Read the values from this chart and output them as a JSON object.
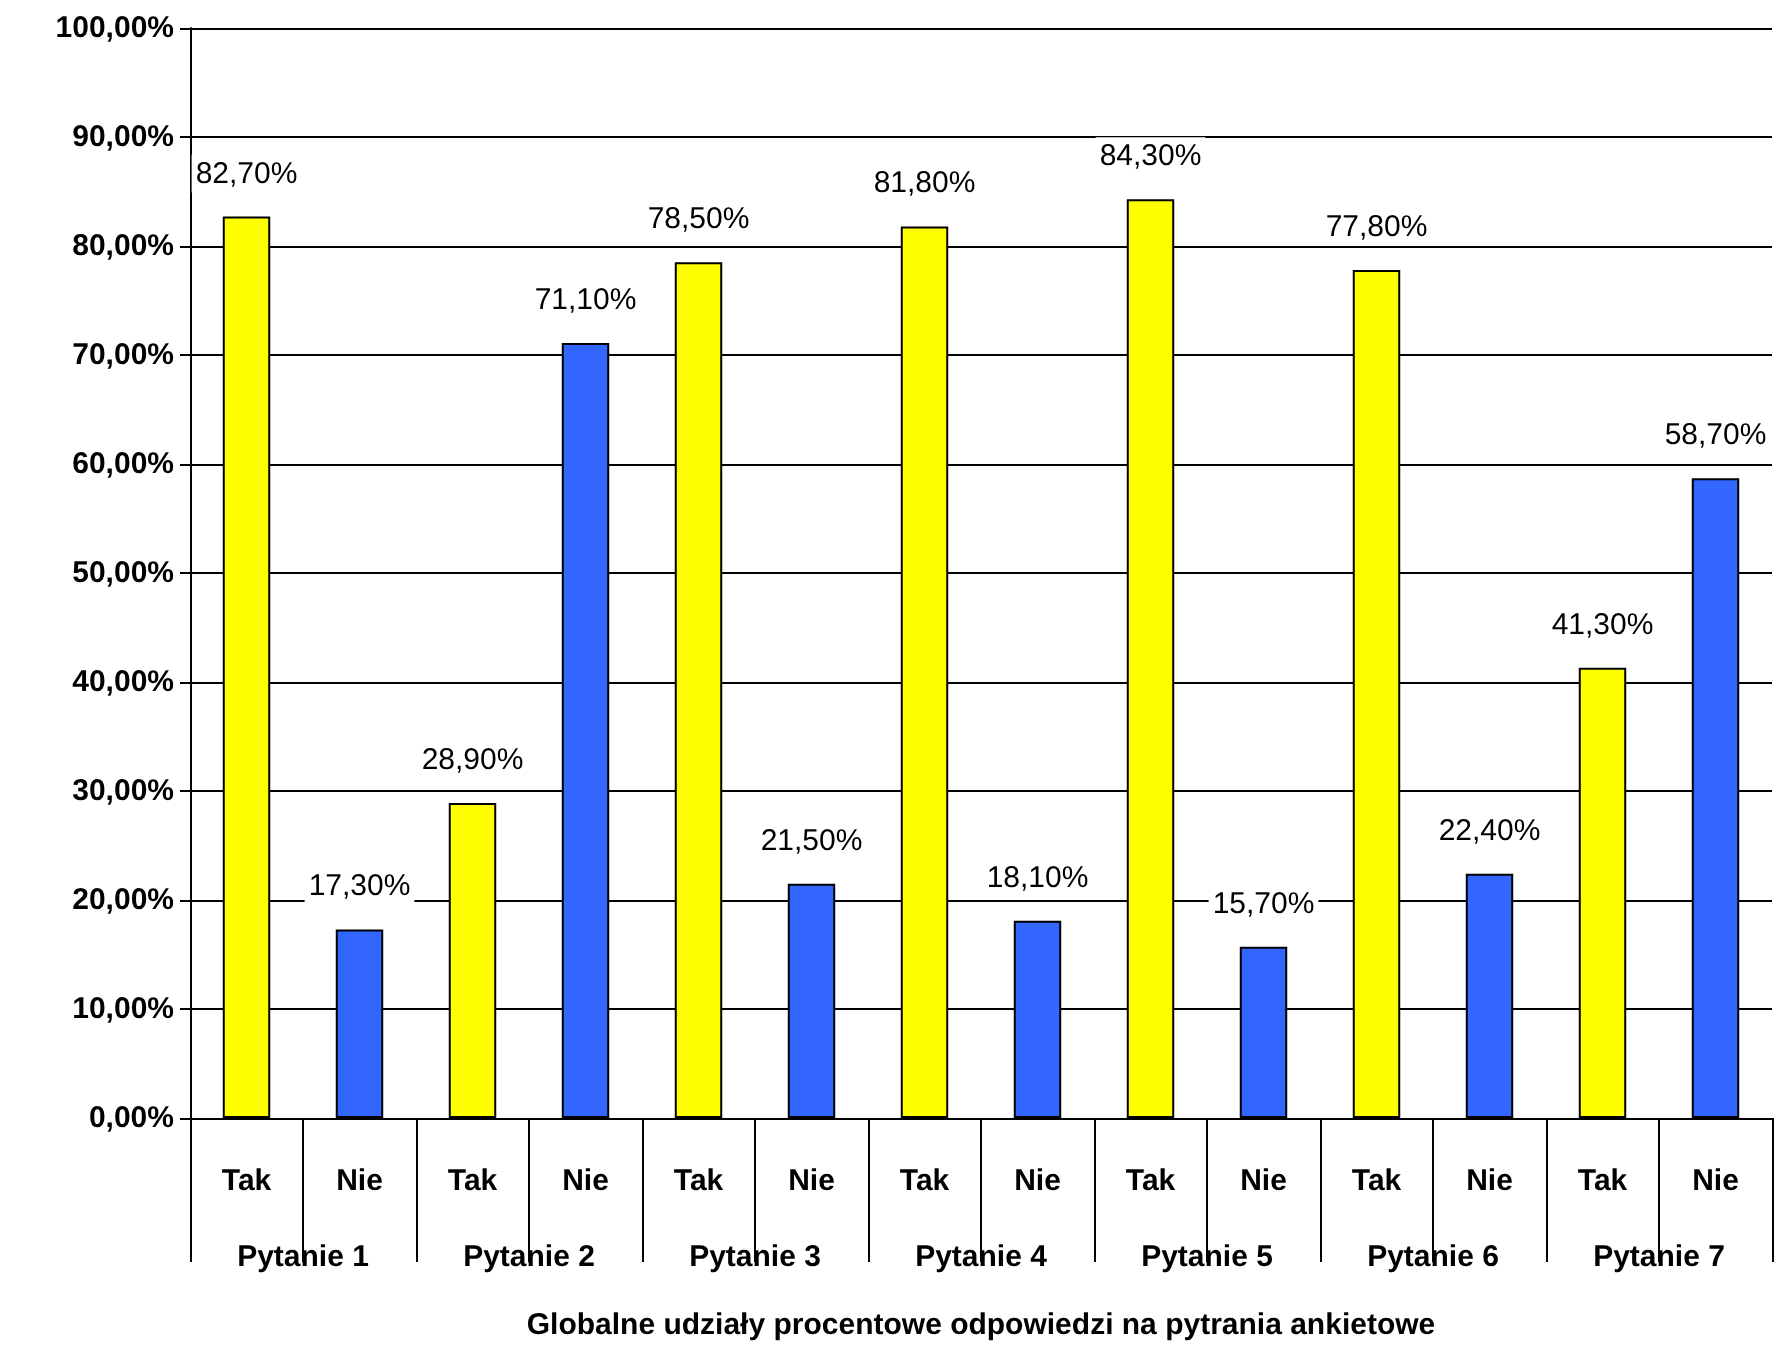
{
  "chart_data": {
    "type": "bar",
    "xlabel": "Globalne udziały procentowe odpowiedzi na pytrania ankietowe",
    "categories": [
      "Tak",
      "Nie",
      "Tak",
      "Nie",
      "Tak",
      "Nie",
      "Tak",
      "Nie",
      "Tak",
      "Nie",
      "Tak",
      "Nie",
      "Tak",
      "Nie"
    ],
    "values": [
      82.7,
      17.3,
      28.9,
      71.1,
      78.5,
      21.5,
      81.8,
      18.1,
      84.3,
      15.7,
      77.8,
      22.4,
      41.3,
      58.7
    ],
    "value_labels": [
      "82,70%",
      "17,30%",
      "28,90%",
      "71,10%",
      "78,50%",
      "21,50%",
      "81,80%",
      "18,10%",
      "84,30%",
      "15,70%",
      "77,80%",
      "22,40%",
      "41,30%",
      "58,70%"
    ],
    "colors": [
      "#ffff00",
      "#3366ff",
      "#ffff00",
      "#3366ff",
      "#ffff00",
      "#3366ff",
      "#ffff00",
      "#3366ff",
      "#ffff00",
      "#3366ff",
      "#ffff00",
      "#3366ff",
      "#ffff00",
      "#3366ff"
    ],
    "annotations": [
      "Pytanie 1",
      "Pytanie 2",
      "Pytanie 3",
      "Pytanie 4",
      "Pytanie 5",
      "Pytanie 6",
      "Pytanie 7"
    ],
    "ylim": [
      0,
      100
    ],
    "yticks": [
      {
        "value": 0,
        "label": "0,00%"
      },
      {
        "value": 10,
        "label": "10,00%"
      },
      {
        "value": 20,
        "label": "20,00%"
      },
      {
        "value": 30,
        "label": "30,00%"
      },
      {
        "value": 40,
        "label": "40,00%"
      },
      {
        "value": 50,
        "label": "50,00%"
      },
      {
        "value": 60,
        "label": "60,00%"
      },
      {
        "value": 70,
        "label": "70,00%"
      },
      {
        "value": 80,
        "label": "80,00%"
      },
      {
        "value": 90,
        "label": "90,00%"
      },
      {
        "value": 100,
        "label": "100,00%"
      }
    ],
    "grid": "y"
  }
}
